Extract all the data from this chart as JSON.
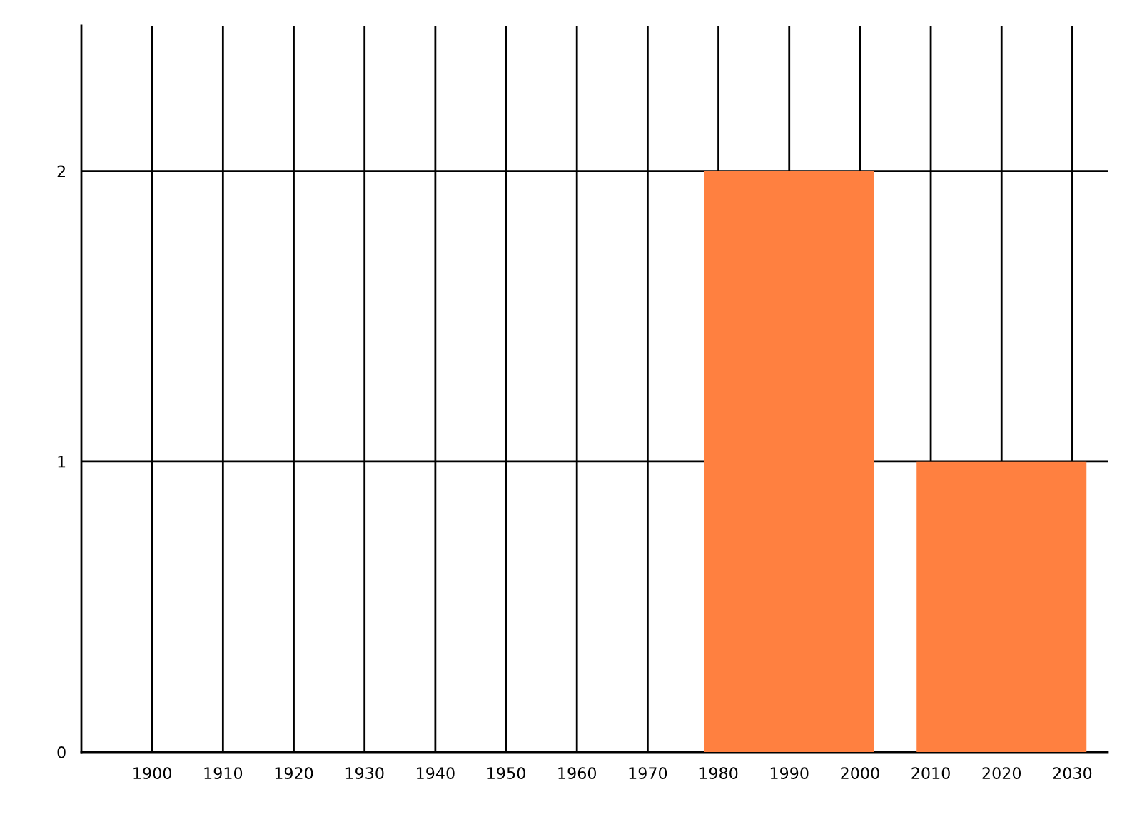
{
  "chart_data": {
    "type": "bar",
    "x": [
      1990,
      2020
    ],
    "values": [
      2,
      1
    ],
    "color": "#ff8040",
    "xlim": [
      1890,
      2035
    ],
    "xticks": [
      1900,
      1910,
      1920,
      1930,
      1940,
      1950,
      1960,
      1970,
      1980,
      1990,
      2000,
      2010,
      2020,
      2030
    ],
    "ylim": [
      0,
      2.5
    ],
    "yticks": [
      0,
      1,
      2
    ],
    "grid": true
  }
}
